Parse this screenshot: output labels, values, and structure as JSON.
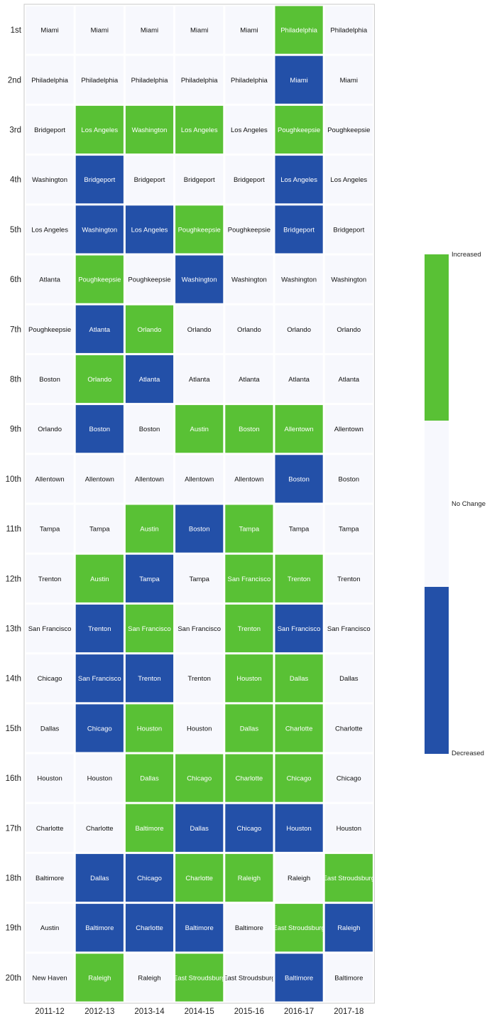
{
  "chart_data": {
    "type": "heatmap",
    "title": "",
    "xlabel": "",
    "ylabel": "",
    "columns": [
      "2011-12",
      "2012-13",
      "2013-14",
      "2014-15",
      "2015-16",
      "2016-17",
      "2017-18"
    ],
    "rows": [
      "1st",
      "2nd",
      "3rd",
      "4th",
      "5th",
      "6th",
      "7th",
      "8th",
      "9th",
      "10th",
      "11th",
      "12th",
      "13th",
      "14th",
      "15th",
      "16th",
      "17th",
      "18th",
      "19th",
      "20th"
    ],
    "cells": [
      [
        [
          "Miami",
          "none"
        ],
        [
          "Miami",
          "none"
        ],
        [
          "Miami",
          "none"
        ],
        [
          "Miami",
          "none"
        ],
        [
          "Miami",
          "none"
        ],
        [
          "Philadelphia",
          "increased"
        ],
        [
          "Philadelphia",
          "none"
        ]
      ],
      [
        [
          "Philadelphia",
          "none"
        ],
        [
          "Philadelphia",
          "none"
        ],
        [
          "Philadelphia",
          "none"
        ],
        [
          "Philadelphia",
          "none"
        ],
        [
          "Philadelphia",
          "none"
        ],
        [
          "Miami",
          "decreased"
        ],
        [
          "Miami",
          "none"
        ]
      ],
      [
        [
          "Bridgeport",
          "none"
        ],
        [
          "Los Angeles",
          "increased"
        ],
        [
          "Washington",
          "increased"
        ],
        [
          "Los Angeles",
          "increased"
        ],
        [
          "Los Angeles",
          "none"
        ],
        [
          "Poughkeepsie",
          "increased"
        ],
        [
          "Poughkeepsie",
          "none"
        ]
      ],
      [
        [
          "Washington",
          "none"
        ],
        [
          "Bridgeport",
          "decreased"
        ],
        [
          "Bridgeport",
          "none"
        ],
        [
          "Bridgeport",
          "none"
        ],
        [
          "Bridgeport",
          "none"
        ],
        [
          "Los Angeles",
          "decreased"
        ],
        [
          "Los Angeles",
          "none"
        ]
      ],
      [
        [
          "Los Angeles",
          "none"
        ],
        [
          "Washington",
          "decreased"
        ],
        [
          "Los Angeles",
          "decreased"
        ],
        [
          "Poughkeepsie",
          "increased"
        ],
        [
          "Poughkeepsie",
          "none"
        ],
        [
          "Bridgeport",
          "decreased"
        ],
        [
          "Bridgeport",
          "none"
        ]
      ],
      [
        [
          "Atlanta",
          "none"
        ],
        [
          "Poughkeepsie",
          "increased"
        ],
        [
          "Poughkeepsie",
          "none"
        ],
        [
          "Washington",
          "decreased"
        ],
        [
          "Washington",
          "none"
        ],
        [
          "Washington",
          "none"
        ],
        [
          "Washington",
          "none"
        ]
      ],
      [
        [
          "Poughkeepsie",
          "none"
        ],
        [
          "Atlanta",
          "decreased"
        ],
        [
          "Orlando",
          "increased"
        ],
        [
          "Orlando",
          "none"
        ],
        [
          "Orlando",
          "none"
        ],
        [
          "Orlando",
          "none"
        ],
        [
          "Orlando",
          "none"
        ]
      ],
      [
        [
          "Boston",
          "none"
        ],
        [
          "Orlando",
          "increased"
        ],
        [
          "Atlanta",
          "decreased"
        ],
        [
          "Atlanta",
          "none"
        ],
        [
          "Atlanta",
          "none"
        ],
        [
          "Atlanta",
          "none"
        ],
        [
          "Atlanta",
          "none"
        ]
      ],
      [
        [
          "Orlando",
          "none"
        ],
        [
          "Boston",
          "decreased"
        ],
        [
          "Boston",
          "none"
        ],
        [
          "Austin",
          "increased"
        ],
        [
          "Boston",
          "increased"
        ],
        [
          "Allentown",
          "increased"
        ],
        [
          "Allentown",
          "none"
        ]
      ],
      [
        [
          "Allentown",
          "none"
        ],
        [
          "Allentown",
          "none"
        ],
        [
          "Allentown",
          "none"
        ],
        [
          "Allentown",
          "none"
        ],
        [
          "Allentown",
          "none"
        ],
        [
          "Boston",
          "decreased"
        ],
        [
          "Boston",
          "none"
        ]
      ],
      [
        [
          "Tampa",
          "none"
        ],
        [
          "Tampa",
          "none"
        ],
        [
          "Austin",
          "increased"
        ],
        [
          "Boston",
          "decreased"
        ],
        [
          "Tampa",
          "increased"
        ],
        [
          "Tampa",
          "none"
        ],
        [
          "Tampa",
          "none"
        ]
      ],
      [
        [
          "Trenton",
          "none"
        ],
        [
          "Austin",
          "increased"
        ],
        [
          "Tampa",
          "decreased"
        ],
        [
          "Tampa",
          "none"
        ],
        [
          "San Francisco",
          "increased"
        ],
        [
          "Trenton",
          "increased"
        ],
        [
          "Trenton",
          "none"
        ]
      ],
      [
        [
          "San Francisco",
          "none"
        ],
        [
          "Trenton",
          "decreased"
        ],
        [
          "San Francisco",
          "increased"
        ],
        [
          "San Francisco",
          "none"
        ],
        [
          "Trenton",
          "increased"
        ],
        [
          "San Francisco",
          "decreased"
        ],
        [
          "San Francisco",
          "none"
        ]
      ],
      [
        [
          "Chicago",
          "none"
        ],
        [
          "San Francisco",
          "decreased"
        ],
        [
          "Trenton",
          "decreased"
        ],
        [
          "Trenton",
          "none"
        ],
        [
          "Houston",
          "increased"
        ],
        [
          "Dallas",
          "increased"
        ],
        [
          "Dallas",
          "none"
        ]
      ],
      [
        [
          "Dallas",
          "none"
        ],
        [
          "Chicago",
          "decreased"
        ],
        [
          "Houston",
          "increased"
        ],
        [
          "Houston",
          "none"
        ],
        [
          "Dallas",
          "increased"
        ],
        [
          "Charlotte",
          "increased"
        ],
        [
          "Charlotte",
          "none"
        ]
      ],
      [
        [
          "Houston",
          "none"
        ],
        [
          "Houston",
          "none"
        ],
        [
          "Dallas",
          "increased"
        ],
        [
          "Chicago",
          "increased"
        ],
        [
          "Charlotte",
          "increased"
        ],
        [
          "Chicago",
          "increased"
        ],
        [
          "Chicago",
          "none"
        ]
      ],
      [
        [
          "Charlotte",
          "none"
        ],
        [
          "Charlotte",
          "none"
        ],
        [
          "Baltimore",
          "increased"
        ],
        [
          "Dallas",
          "decreased"
        ],
        [
          "Chicago",
          "decreased"
        ],
        [
          "Houston",
          "decreased"
        ],
        [
          "Houston",
          "none"
        ]
      ],
      [
        [
          "Baltimore",
          "none"
        ],
        [
          "Dallas",
          "decreased"
        ],
        [
          "Chicago",
          "decreased"
        ],
        [
          "Charlotte",
          "increased"
        ],
        [
          "Raleigh",
          "increased"
        ],
        [
          "Raleigh",
          "none"
        ],
        [
          "East Stroudsburg",
          "increased"
        ]
      ],
      [
        [
          "Austin",
          "none"
        ],
        [
          "Baltimore",
          "decreased"
        ],
        [
          "Charlotte",
          "decreased"
        ],
        [
          "Baltimore",
          "decreased"
        ],
        [
          "Baltimore",
          "none"
        ],
        [
          "East Stroudsburg",
          "increased"
        ],
        [
          "Raleigh",
          "decreased"
        ]
      ],
      [
        [
          "New Haven",
          "none"
        ],
        [
          "Raleigh",
          "increased"
        ],
        [
          "Raleigh",
          "none"
        ],
        [
          "East Stroudsburg",
          "increased"
        ],
        [
          "East Stroudsburg",
          "none"
        ],
        [
          "Baltimore",
          "decreased"
        ],
        [
          "Baltimore",
          "none"
        ]
      ]
    ],
    "colorbar": {
      "labels": {
        "increased": "Increased",
        "none": "No Change",
        "decreased": "Decreased"
      }
    },
    "colors": {
      "increased": "#59c135",
      "none": "#f7f8fd",
      "decreased": "#2350a8"
    },
    "grid": false,
    "legend": "right"
  }
}
